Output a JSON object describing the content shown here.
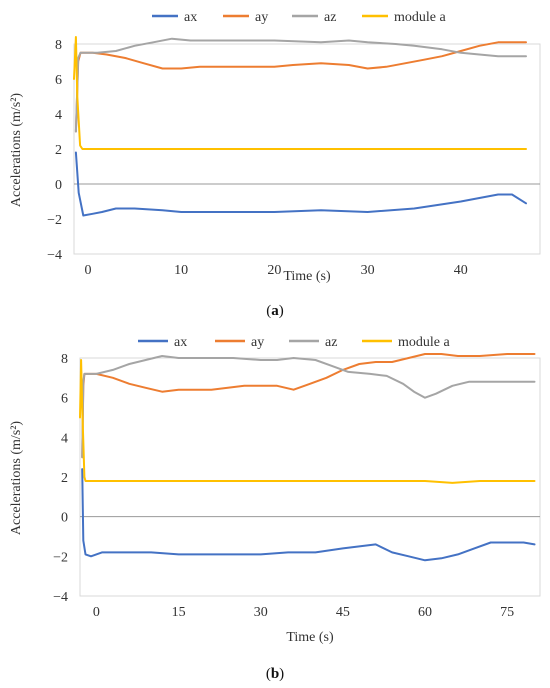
{
  "colors": {
    "ax": "#4472C4",
    "ay": "#ED7D31",
    "az": "#A5A5A5",
    "module": "#FFC000"
  },
  "chart_data": [
    {
      "type": "line",
      "caption_letter": "a",
      "xlabel": "Time (s)",
      "ylabel": "Accelerations (m/s²)",
      "xlim": [
        -1.5,
        48.5
      ],
      "ylim": [
        -4,
        8
      ],
      "xticks": [
        0,
        10,
        20,
        30,
        40
      ],
      "yticks": [
        -4,
        -2,
        0,
        2,
        4,
        6,
        8
      ],
      "legend_position": "top",
      "series": [
        {
          "name": "ax",
          "color_key": "ax",
          "x": [
            -1.3,
            -1.0,
            -0.5,
            0.5,
            1.5,
            3,
            5,
            8,
            10,
            15,
            20,
            25,
            30,
            35,
            40,
            42,
            44,
            45.5,
            47
          ],
          "y": [
            1.8,
            -0.5,
            -1.8,
            -1.7,
            -1.6,
            -1.4,
            -1.4,
            -1.5,
            -1.6,
            -1.6,
            -1.6,
            -1.5,
            -1.6,
            -1.4,
            -1.0,
            -0.8,
            -0.6,
            -0.6,
            -1.1
          ]
        },
        {
          "name": "ay",
          "color_key": "ay",
          "x": [
            -1.3,
            -1.05,
            -0.8,
            -0.5,
            0.5,
            2,
            4,
            6,
            8,
            10,
            12,
            15,
            18,
            20,
            22,
            25,
            28,
            30,
            32,
            34,
            36,
            38,
            40,
            42,
            44,
            45.5,
            47
          ],
          "y": [
            3.0,
            7.0,
            7.5,
            7.5,
            7.5,
            7.4,
            7.2,
            6.9,
            6.6,
            6.6,
            6.7,
            6.7,
            6.7,
            6.7,
            6.8,
            6.9,
            6.8,
            6.6,
            6.7,
            6.9,
            7.1,
            7.3,
            7.6,
            7.9,
            8.1,
            8.1,
            8.1
          ]
        },
        {
          "name": "az",
          "color_key": "az",
          "x": [
            -1.3,
            -1.05,
            -0.8,
            1,
            3,
            5,
            7,
            9,
            11,
            15,
            20,
            25,
            28,
            30,
            33,
            35,
            38,
            40,
            42,
            44,
            45.5,
            47
          ],
          "y": [
            3.0,
            7.2,
            7.5,
            7.5,
            7.6,
            7.9,
            8.1,
            8.3,
            8.2,
            8.2,
            8.2,
            8.1,
            8.2,
            8.1,
            8.0,
            7.9,
            7.7,
            7.5,
            7.4,
            7.3,
            7.3,
            7.3
          ]
        },
        {
          "name": "module a",
          "color_key": "module",
          "x": [
            -1.5,
            -1.3,
            -1.15,
            -1.0,
            -0.85,
            -0.6,
            0,
            5,
            10,
            15,
            20,
            25,
            30,
            35,
            40,
            45,
            47
          ],
          "y": [
            6.0,
            8.4,
            5.0,
            3.6,
            2.2,
            2.0,
            2.0,
            2.0,
            2.0,
            2.0,
            2.0,
            2.0,
            2.0,
            2.0,
            2.0,
            2.0,
            2.0
          ]
        }
      ]
    },
    {
      "type": "line",
      "caption_letter": "b",
      "xlabel": "Time (s)",
      "ylabel": "Accelerations (m/s²)",
      "xlim": [
        -3,
        81
      ],
      "ylim": [
        -4,
        8
      ],
      "xticks": [
        0,
        15,
        30,
        45,
        60,
        75
      ],
      "yticks": [
        -4,
        -2,
        0,
        2,
        4,
        6,
        8
      ],
      "legend_position": "top",
      "series": [
        {
          "name": "ax",
          "color_key": "ax",
          "x": [
            -2.6,
            -2.4,
            -2,
            -1,
            1,
            5,
            10,
            15,
            20,
            25,
            30,
            35,
            40,
            45,
            48,
            51,
            54,
            57,
            60,
            63,
            66,
            69,
            72,
            75,
            78,
            80
          ],
          "y": [
            2.4,
            -1.2,
            -1.9,
            -2.0,
            -1.8,
            -1.8,
            -1.8,
            -1.9,
            -1.9,
            -1.9,
            -1.9,
            -1.8,
            -1.8,
            -1.6,
            -1.5,
            -1.4,
            -1.8,
            -2.0,
            -2.2,
            -2.1,
            -1.9,
            -1.6,
            -1.3,
            -1.3,
            -1.3,
            -1.4
          ]
        },
        {
          "name": "ay",
          "color_key": "ay",
          "x": [
            -2.6,
            -2.4,
            -2.2,
            -2,
            0,
            3,
            6,
            9,
            12,
            15,
            18,
            21,
            24,
            27,
            30,
            33,
            36,
            39,
            42,
            45,
            48,
            51,
            54,
            57,
            60,
            63,
            66,
            70,
            75,
            80
          ],
          "y": [
            3.0,
            6.6,
            7.2,
            7.2,
            7.2,
            7.0,
            6.7,
            6.5,
            6.3,
            6.4,
            6.4,
            6.4,
            6.5,
            6.6,
            6.6,
            6.6,
            6.4,
            6.7,
            7.0,
            7.4,
            7.7,
            7.8,
            7.8,
            8.0,
            8.2,
            8.2,
            8.1,
            8.1,
            8.2,
            8.2
          ]
        },
        {
          "name": "az",
          "color_key": "az",
          "x": [
            -2.6,
            -2.4,
            -2.2,
            0,
            3,
            6,
            9,
            12,
            15,
            20,
            25,
            30,
            33,
            36,
            40,
            43,
            46,
            50,
            53,
            56,
            58,
            60,
            62,
            65,
            68,
            72,
            76,
            80
          ],
          "y": [
            3.0,
            6.8,
            7.2,
            7.2,
            7.4,
            7.7,
            7.9,
            8.1,
            8.0,
            8.0,
            8.0,
            7.9,
            7.9,
            8.0,
            7.9,
            7.6,
            7.3,
            7.2,
            7.1,
            6.7,
            6.3,
            6.0,
            6.2,
            6.6,
            6.8,
            6.8,
            6.8,
            6.8
          ]
        },
        {
          "name": "module a",
          "color_key": "module",
          "x": [
            -3,
            -2.8,
            -2.6,
            -2.4,
            -2.2,
            -2.0,
            -1.5,
            0,
            10,
            20,
            30,
            40,
            50,
            60,
            65,
            70,
            80
          ],
          "y": [
            5.0,
            7.9,
            5.5,
            3.8,
            2.0,
            1.8,
            1.8,
            1.8,
            1.8,
            1.8,
            1.8,
            1.8,
            1.8,
            1.8,
            1.7,
            1.8,
            1.8
          ]
        }
      ]
    }
  ]
}
